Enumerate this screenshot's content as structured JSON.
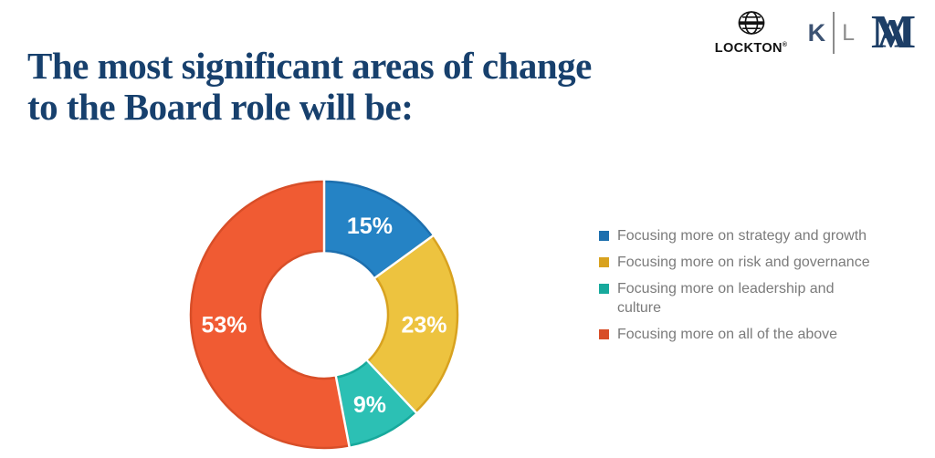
{
  "header": {
    "title_lines": [
      "The most significant areas of change",
      "to the Board role will be:"
    ],
    "title_color": "#17406d"
  },
  "logos": {
    "lockton": {
      "label": "LOCKTON",
      "reg": "®"
    },
    "kl": {
      "left": "K",
      "right": "L"
    },
    "monogram": {
      "letters": [
        "A",
        "M"
      ]
    }
  },
  "chart_data": {
    "type": "pie",
    "subtype": "donut",
    "title": "The most significant areas of change to the Board role will be:",
    "categories": [
      "Focusing more on strategy and growth",
      "Focusing more on risk and governance",
      "Focusing more on leadership and culture",
      "Focusing more on all of the above"
    ],
    "values": [
      15,
      23,
      9,
      53
    ],
    "labels": [
      "15%",
      "23%",
      "9%",
      "53%"
    ],
    "colors": [
      "#2583c5",
      "#edc33f",
      "#2cc0b4",
      "#f05b33"
    ],
    "edge_colors": [
      "#1d6fae",
      "#d8a21f",
      "#17a99c",
      "#d84e28"
    ],
    "label_color": "#ffffff",
    "start_angle_deg": 0,
    "direction": "clockwise",
    "legend_position": "right",
    "legend_text_color": "#7b7b7b"
  }
}
